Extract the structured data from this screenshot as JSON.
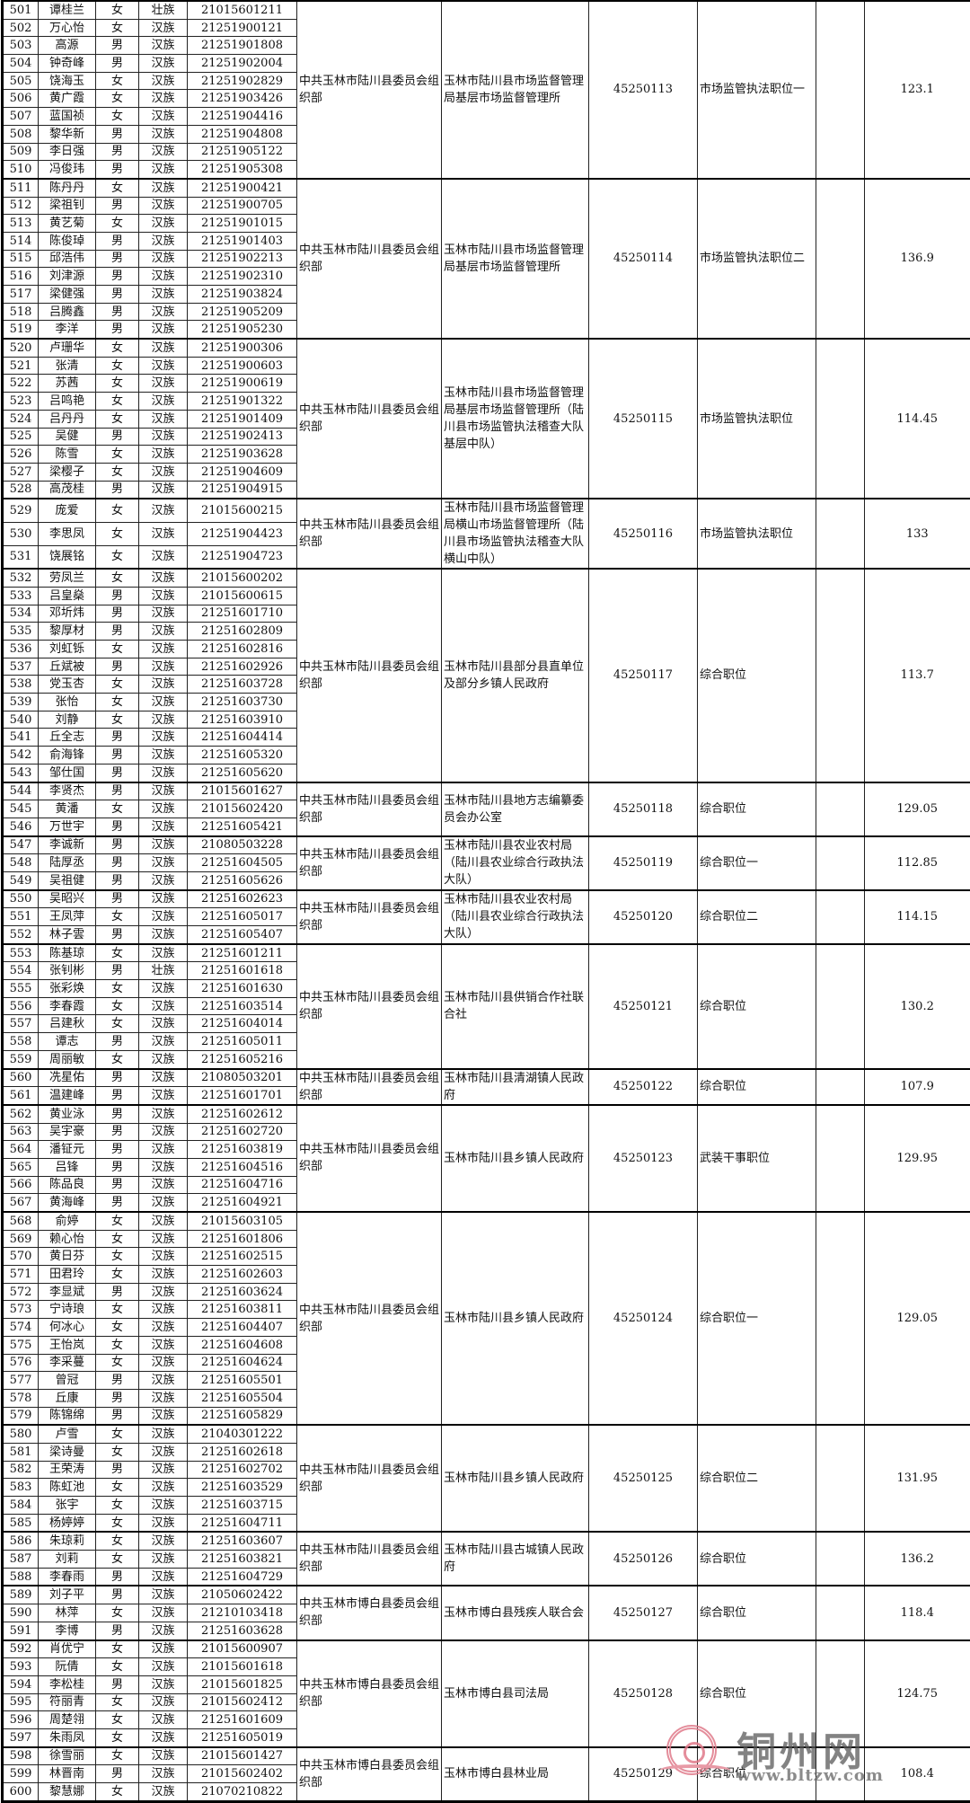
{
  "watermark": {
    "brand": "铜州网",
    "url": "www.bltzw.com",
    "seal_color": "#e07a8a"
  },
  "groups": [
    {
      "recruiter": "中共玉林市陆川县委员会组织部",
      "unit": "玉林市陆川县市场监督管理局基层市场监督管理所",
      "code": "45250113",
      "position": "市场监管执法职位一",
      "remark": "",
      "score": "123.1",
      "rows": [
        [
          "501",
          "谭桂兰",
          "女",
          "壮族",
          "21015601211"
        ],
        [
          "502",
          "万心怡",
          "女",
          "汉族",
          "21251900121"
        ],
        [
          "503",
          "高源",
          "男",
          "汉族",
          "21251901808"
        ],
        [
          "504",
          "钟奇峰",
          "男",
          "汉族",
          "21251902004"
        ],
        [
          "505",
          "饶海玉",
          "女",
          "汉族",
          "21251902829"
        ],
        [
          "506",
          "黄广霞",
          "女",
          "汉族",
          "21251903426"
        ],
        [
          "507",
          "蓝国祯",
          "女",
          "汉族",
          "21251904416"
        ],
        [
          "508",
          "黎华新",
          "男",
          "汉族",
          "21251904808"
        ],
        [
          "509",
          "李日强",
          "男",
          "汉族",
          "21251905122"
        ],
        [
          "510",
          "冯俊玮",
          "男",
          "汉族",
          "21251905308"
        ]
      ]
    },
    {
      "recruiter": "中共玉林市陆川县委员会组织部",
      "unit": "玉林市陆川县市场监督管理局基层市场监督管理所",
      "code": "45250114",
      "position": "市场监管执法职位二",
      "remark": "",
      "score": "136.9",
      "rows": [
        [
          "511",
          "陈丹丹",
          "女",
          "汉族",
          "21251900421"
        ],
        [
          "512",
          "梁祖钊",
          "男",
          "汉族",
          "21251900705"
        ],
        [
          "513",
          "黄艺菊",
          "女",
          "汉族",
          "21251901015"
        ],
        [
          "514",
          "陈俊琸",
          "男",
          "汉族",
          "21251901403"
        ],
        [
          "515",
          "邱浩伟",
          "男",
          "汉族",
          "21251902213"
        ],
        [
          "516",
          "刘津源",
          "男",
          "汉族",
          "21251902310"
        ],
        [
          "517",
          "梁健强",
          "男",
          "汉族",
          "21251903824"
        ],
        [
          "518",
          "吕腾鑫",
          "男",
          "汉族",
          "21251905209"
        ],
        [
          "519",
          "李洋",
          "男",
          "汉族",
          "21251905230"
        ]
      ]
    },
    {
      "recruiter": "中共玉林市陆川县委员会组织部",
      "unit": "玉林市陆川县市场监督管理局基层市场监督管理所（陆川县市场监管执法稽查大队基层中队）",
      "code": "45250115",
      "position": "市场监管执法职位",
      "remark": "",
      "score": "114.45",
      "rows": [
        [
          "520",
          "卢珊华",
          "女",
          "汉族",
          "21251900306"
        ],
        [
          "521",
          "张清",
          "女",
          "汉族",
          "21251900603"
        ],
        [
          "522",
          "苏茜",
          "女",
          "汉族",
          "21251900619"
        ],
        [
          "523",
          "吕鸣艳",
          "女",
          "汉族",
          "21251901322"
        ],
        [
          "524",
          "吕丹丹",
          "女",
          "汉族",
          "21251901409"
        ],
        [
          "525",
          "吴健",
          "男",
          "汉族",
          "21251902413"
        ],
        [
          "526",
          "陈雪",
          "女",
          "汉族",
          "21251903628"
        ],
        [
          "527",
          "梁樱子",
          "女",
          "汉族",
          "21251904609"
        ],
        [
          "528",
          "高茂桂",
          "男",
          "汉族",
          "21251904915"
        ]
      ]
    },
    {
      "recruiter": "中共玉林市陆川县委员会组织部",
      "unit": "玉林市陆川县市场监督管理局横山市场监督管理所（陆川县市场监管执法稽查大队横山中队）",
      "code": "45250116",
      "position": "市场监管执法职位",
      "remark": "",
      "score": "133",
      "tall": true,
      "rows": [
        [
          "529",
          "庞爱",
          "女",
          "汉族",
          "21015600215"
        ],
        [
          "530",
          "李思凤",
          "女",
          "汉族",
          "21251904423"
        ],
        [
          "531",
          "饶展铭",
          "女",
          "汉族",
          "21251904723"
        ]
      ]
    },
    {
      "recruiter": "中共玉林市陆川县委员会组织部",
      "unit": "玉林市陆川县部分县直单位及部分乡镇人民政府",
      "code": "45250117",
      "position": "综合职位",
      "remark": "",
      "score": "113.7",
      "rows": [
        [
          "532",
          "劳凤兰",
          "女",
          "汉族",
          "21015600202"
        ],
        [
          "533",
          "吕皇燊",
          "男",
          "汉族",
          "21015600615"
        ],
        [
          "534",
          "邓圻炜",
          "男",
          "汉族",
          "21251601710"
        ],
        [
          "535",
          "黎厚材",
          "男",
          "汉族",
          "21251602809"
        ],
        [
          "536",
          "刘虹铄",
          "女",
          "汉族",
          "21251602816"
        ],
        [
          "537",
          "丘斌被",
          "男",
          "汉族",
          "21251602926"
        ],
        [
          "538",
          "党玉杏",
          "女",
          "汉族",
          "21251603728"
        ],
        [
          "539",
          "张怡",
          "女",
          "汉族",
          "21251603730"
        ],
        [
          "540",
          "刘静",
          "女",
          "汉族",
          "21251603910"
        ],
        [
          "541",
          "丘全志",
          "男",
          "汉族",
          "21251604414"
        ],
        [
          "542",
          "俞海锋",
          "男",
          "汉族",
          "21251605320"
        ],
        [
          "543",
          "邹仕国",
          "男",
          "汉族",
          "21251605620"
        ]
      ]
    },
    {
      "recruiter": "中共玉林市陆川县委员会组织部",
      "unit": "玉林市陆川县地方志编纂委员会办公室",
      "code": "45250118",
      "position": "综合职位",
      "remark": "",
      "score": "129.05",
      "rows": [
        [
          "544",
          "李贤杰",
          "男",
          "汉族",
          "21015601627"
        ],
        [
          "545",
          "黄潘",
          "女",
          "汉族",
          "21015602420"
        ],
        [
          "546",
          "万世宇",
          "男",
          "汉族",
          "21251605421"
        ]
      ]
    },
    {
      "recruiter": "中共玉林市陆川县委员会组织部",
      "unit": "玉林市陆川县农业农村局（陆川县农业综合行政执法大队）",
      "code": "45250119",
      "position": "综合职位一",
      "remark": "",
      "score": "112.85",
      "rows": [
        [
          "547",
          "李诚新",
          "男",
          "汉族",
          "21080503228"
        ],
        [
          "548",
          "陆厚丞",
          "男",
          "汉族",
          "21251604505"
        ],
        [
          "549",
          "吴祖健",
          "男",
          "汉族",
          "21251605626"
        ]
      ]
    },
    {
      "recruiter": "中共玉林市陆川县委员会组织部",
      "unit": "玉林市陆川县农业农村局（陆川县农业综合行政执法大队）",
      "code": "45250120",
      "position": "综合职位二",
      "remark": "",
      "score": "114.15",
      "rows": [
        [
          "550",
          "吴昭兴",
          "男",
          "汉族",
          "21251602623"
        ],
        [
          "551",
          "王凤萍",
          "女",
          "汉族",
          "21251605017"
        ],
        [
          "552",
          "林子雲",
          "男",
          "汉族",
          "21251605407"
        ]
      ]
    },
    {
      "recruiter": "中共玉林市陆川县委员会组织部",
      "unit": "玉林市陆川县供销合作社联合社",
      "code": "45250121",
      "position": "综合职位",
      "remark": "",
      "score": "130.2",
      "rows": [
        [
          "553",
          "陈基琼",
          "女",
          "汉族",
          "21251601211"
        ],
        [
          "554",
          "张钊彬",
          "男",
          "壮族",
          "21251601618"
        ],
        [
          "555",
          "张彩焕",
          "女",
          "汉族",
          "21251601630"
        ],
        [
          "556",
          "李春霞",
          "女",
          "汉族",
          "21251603514"
        ],
        [
          "557",
          "吕建秋",
          "女",
          "汉族",
          "21251604014"
        ],
        [
          "558",
          "谭志",
          "男",
          "汉族",
          "21251605011"
        ],
        [
          "559",
          "周丽敏",
          "女",
          "汉族",
          "21251605216"
        ]
      ]
    },
    {
      "recruiter": "中共玉林市陆川县委员会组织部",
      "unit": "玉林市陆川县清湖镇人民政府",
      "code": "45250122",
      "position": "综合职位",
      "remark": "",
      "score": "107.9",
      "rows": [
        [
          "560",
          "冼星佑",
          "男",
          "汉族",
          "21080503201"
        ],
        [
          "561",
          "温建峰",
          "男",
          "汉族",
          "21251601701"
        ]
      ]
    },
    {
      "recruiter": "中共玉林市陆川县委员会组织部",
      "unit": "玉林市陆川县乡镇人民政府",
      "code": "45250123",
      "position": "武装干事职位",
      "remark": "",
      "score": "129.95",
      "rows": [
        [
          "562",
          "黄业泳",
          "男",
          "汉族",
          "21251602612"
        ],
        [
          "563",
          "吴宇豪",
          "男",
          "汉族",
          "21251602720"
        ],
        [
          "564",
          "潘钲元",
          "男",
          "汉族",
          "21251603819"
        ],
        [
          "565",
          "吕锋",
          "男",
          "汉族",
          "21251604516"
        ],
        [
          "566",
          "陈品良",
          "男",
          "汉族",
          "21251604716"
        ],
        [
          "567",
          "黄海峰",
          "男",
          "汉族",
          "21251604921"
        ]
      ]
    },
    {
      "recruiter": "中共玉林市陆川县委员会组织部",
      "unit": "玉林市陆川县乡镇人民政府",
      "code": "45250124",
      "position": "综合职位一",
      "remark": "",
      "score": "129.05",
      "rows": [
        [
          "568",
          "俞婷",
          "女",
          "汉族",
          "21015603105"
        ],
        [
          "569",
          "赖心怡",
          "女",
          "汉族",
          "21251601806"
        ],
        [
          "570",
          "黄日芬",
          "女",
          "汉族",
          "21251602515"
        ],
        [
          "571",
          "田君玲",
          "女",
          "汉族",
          "21251602603"
        ],
        [
          "572",
          "李显斌",
          "男",
          "汉族",
          "21251603624"
        ],
        [
          "573",
          "宁诗琅",
          "女",
          "汉族",
          "21251603811"
        ],
        [
          "574",
          "何冰心",
          "女",
          "汉族",
          "21251604407"
        ],
        [
          "575",
          "王怡岚",
          "女",
          "汉族",
          "21251604608"
        ],
        [
          "576",
          "李采蔓",
          "女",
          "汉族",
          "21251604624"
        ],
        [
          "577",
          "曾冠",
          "男",
          "汉族",
          "21251605501"
        ],
        [
          "578",
          "丘康",
          "男",
          "汉族",
          "21251605504"
        ],
        [
          "579",
          "陈锦绵",
          "男",
          "汉族",
          "21251605829"
        ]
      ]
    },
    {
      "recruiter": "中共玉林市陆川县委员会组织部",
      "unit": "玉林市陆川县乡镇人民政府",
      "code": "45250125",
      "position": "综合职位二",
      "remark": "",
      "score": "131.95",
      "rows": [
        [
          "580",
          "卢雪",
          "女",
          "汉族",
          "21040301222"
        ],
        [
          "581",
          "梁诗曼",
          "女",
          "汉族",
          "21251602618"
        ],
        [
          "582",
          "王荣涛",
          "男",
          "汉族",
          "21251602702"
        ],
        [
          "583",
          "陈虹池",
          "女",
          "汉族",
          "21251603529"
        ],
        [
          "584",
          "张宇",
          "女",
          "汉族",
          "21251603715"
        ],
        [
          "585",
          "杨婷婷",
          "女",
          "汉族",
          "21251604711"
        ]
      ]
    },
    {
      "recruiter": "中共玉林市陆川县委员会组织部",
      "unit": "玉林市陆川县古城镇人民政府",
      "code": "45250126",
      "position": "综合职位",
      "remark": "",
      "score": "136.2",
      "rows": [
        [
          "586",
          "朱琼莉",
          "女",
          "汉族",
          "21251603607"
        ],
        [
          "587",
          "刘莉",
          "女",
          "汉族",
          "21251603821"
        ],
        [
          "588",
          "李春雨",
          "男",
          "汉族",
          "21251604729"
        ]
      ]
    },
    {
      "recruiter": "中共玉林市博白县委员会组织部",
      "unit": "玉林市博白县残疾人联合会",
      "code": "45250127",
      "position": "综合职位",
      "remark": "",
      "score": "118.4",
      "rows": [
        [
          "589",
          "刘子平",
          "男",
          "汉族",
          "21050602422"
        ],
        [
          "590",
          "林萍",
          "女",
          "汉族",
          "21210103418"
        ],
        [
          "591",
          "李博",
          "男",
          "汉族",
          "21251603628"
        ]
      ]
    },
    {
      "recruiter": "中共玉林市博白县委员会组织部",
      "unit": "玉林市博白县司法局",
      "code": "45250128",
      "position": "综合职位",
      "remark": "",
      "score": "124.75",
      "rows": [
        [
          "592",
          "肖优宁",
          "女",
          "汉族",
          "21015600907"
        ],
        [
          "593",
          "阮倩",
          "女",
          "汉族",
          "21015601618"
        ],
        [
          "594",
          "李松桂",
          "男",
          "汉族",
          "21015601825"
        ],
        [
          "595",
          "符丽青",
          "女",
          "汉族",
          "21015602412"
        ],
        [
          "596",
          "周楚翎",
          "女",
          "汉族",
          "21251601609"
        ],
        [
          "597",
          "朱雨凤",
          "女",
          "汉族",
          "21251605019"
        ]
      ]
    },
    {
      "recruiter": "中共玉林市博白县委员会组织部",
      "unit": "玉林市博白县林业局",
      "code": "45250129",
      "position": "综合职位",
      "remark": "",
      "score": "108.4",
      "rows": [
        [
          "598",
          "徐雪丽",
          "女",
          "汉族",
          "21015601427"
        ],
        [
          "599",
          "林晋南",
          "男",
          "汉族",
          "21015602402"
        ],
        [
          "600",
          "黎慧娜",
          "女",
          "汉族",
          "21070210822"
        ]
      ]
    }
  ]
}
